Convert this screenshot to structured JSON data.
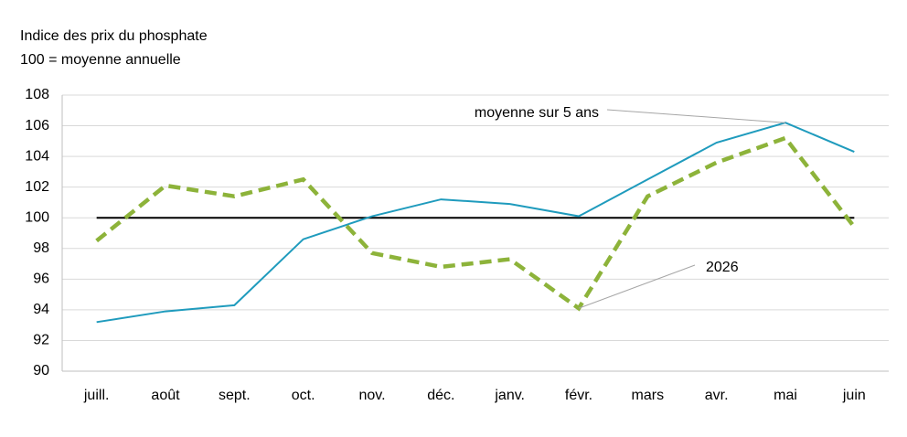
{
  "chart_data": {
    "type": "line",
    "title": "Indice des prix du phosphate",
    "subtitle": "100 = moyenne annuelle",
    "categories": [
      "juill.",
      "août",
      "sept.",
      "oct.",
      "nov.",
      "déc.",
      "janv.",
      "févr.",
      "mars",
      "avr.",
      "mai",
      "juin"
    ],
    "series": [
      {
        "name": "moyenne sur 5 ans",
        "color": "#1f9bbd",
        "dashed": false,
        "values": [
          93.2,
          93.9,
          94.3,
          98.6,
          100.1,
          101.2,
          100.9,
          100.1,
          102.5,
          104.9,
          106.2,
          104.3
        ]
      },
      {
        "name": "2026",
        "color": "#8db33a",
        "dashed": true,
        "values": [
          98.5,
          102.1,
          101.4,
          102.5,
          97.7,
          96.8,
          97.3,
          94.1,
          101.4,
          103.6,
          105.2,
          99.4
        ]
      }
    ],
    "reference_line": 100,
    "ylim": [
      90,
      108
    ],
    "yticks": [
      90,
      92,
      94,
      96,
      98,
      100,
      102,
      104,
      106,
      108
    ],
    "grid": true
  }
}
